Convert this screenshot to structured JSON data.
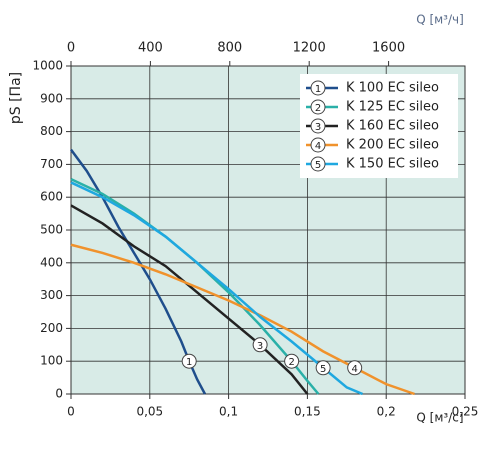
{
  "chart_data": {
    "type": "line",
    "xlabel": "Q [м³/с]",
    "x2label": "Q [м³/ч]",
    "ylabel": "pS [Па]",
    "xlim": [
      0,
      0.25
    ],
    "xticks": [
      0,
      {
        "value": 0.05,
        "label": "0,05"
      },
      {
        "value": 0.1,
        "label": "0,1"
      },
      {
        "value": 0.15,
        "label": "0,15"
      },
      {
        "value": 0.2,
        "label": "0,2"
      },
      {
        "value": 0.25,
        "label": "0,25"
      }
    ],
    "x2lim": [
      0,
      1985
    ],
    "x2ticks": [
      0,
      400,
      800,
      1200,
      1600
    ],
    "ylim": [
      0,
      1000
    ],
    "yticks": [
      0,
      100,
      200,
      300,
      400,
      500,
      600,
      700,
      800,
      900,
      1000
    ],
    "grid": true,
    "series": [
      {
        "name": "K 100 EC sileo",
        "label": "1",
        "color": "#1f4e8c",
        "x": [
          0,
          0.01,
          0.02,
          0.03,
          0.04,
          0.05,
          0.06,
          0.07,
          0.075,
          0.08,
          0.085
        ],
        "values": [
          745,
          680,
          600,
          510,
          430,
          350,
          260,
          160,
          100,
          45,
          0
        ]
      },
      {
        "name": "K 125 EC sileo",
        "label": "2",
        "color": "#2ab0a8",
        "x": [
          0,
          0.02,
          0.04,
          0.06,
          0.08,
          0.1,
          0.12,
          0.14,
          0.15,
          0.157
        ],
        "values": [
          655,
          610,
          550,
          480,
          400,
          310,
          210,
          100,
          40,
          0
        ]
      },
      {
        "name": "K 160 EC sileo",
        "label": "3",
        "color": "#222222",
        "x": [
          0,
          0.02,
          0.04,
          0.06,
          0.08,
          0.1,
          0.12,
          0.14,
          0.15
        ],
        "values": [
          575,
          520,
          450,
          390,
          310,
          230,
          150,
          60,
          0
        ]
      },
      {
        "name": "K 200 EC sileo",
        "label": "4",
        "color": "#f0922c",
        "x": [
          0,
          0.02,
          0.04,
          0.06,
          0.08,
          0.1,
          0.12,
          0.14,
          0.16,
          0.18,
          0.2,
          0.218
        ],
        "values": [
          455,
          430,
          400,
          365,
          325,
          285,
          240,
          190,
          130,
          80,
          30,
          0
        ]
      },
      {
        "name": "K 150 EC sileo",
        "label": "5",
        "color": "#1fa8e0",
        "x": [
          0,
          0.02,
          0.04,
          0.06,
          0.08,
          0.1,
          0.12,
          0.14,
          0.16,
          0.175,
          0.185
        ],
        "values": [
          645,
          600,
          545,
          480,
          400,
          320,
          235,
          160,
          80,
          20,
          0
        ]
      }
    ]
  }
}
